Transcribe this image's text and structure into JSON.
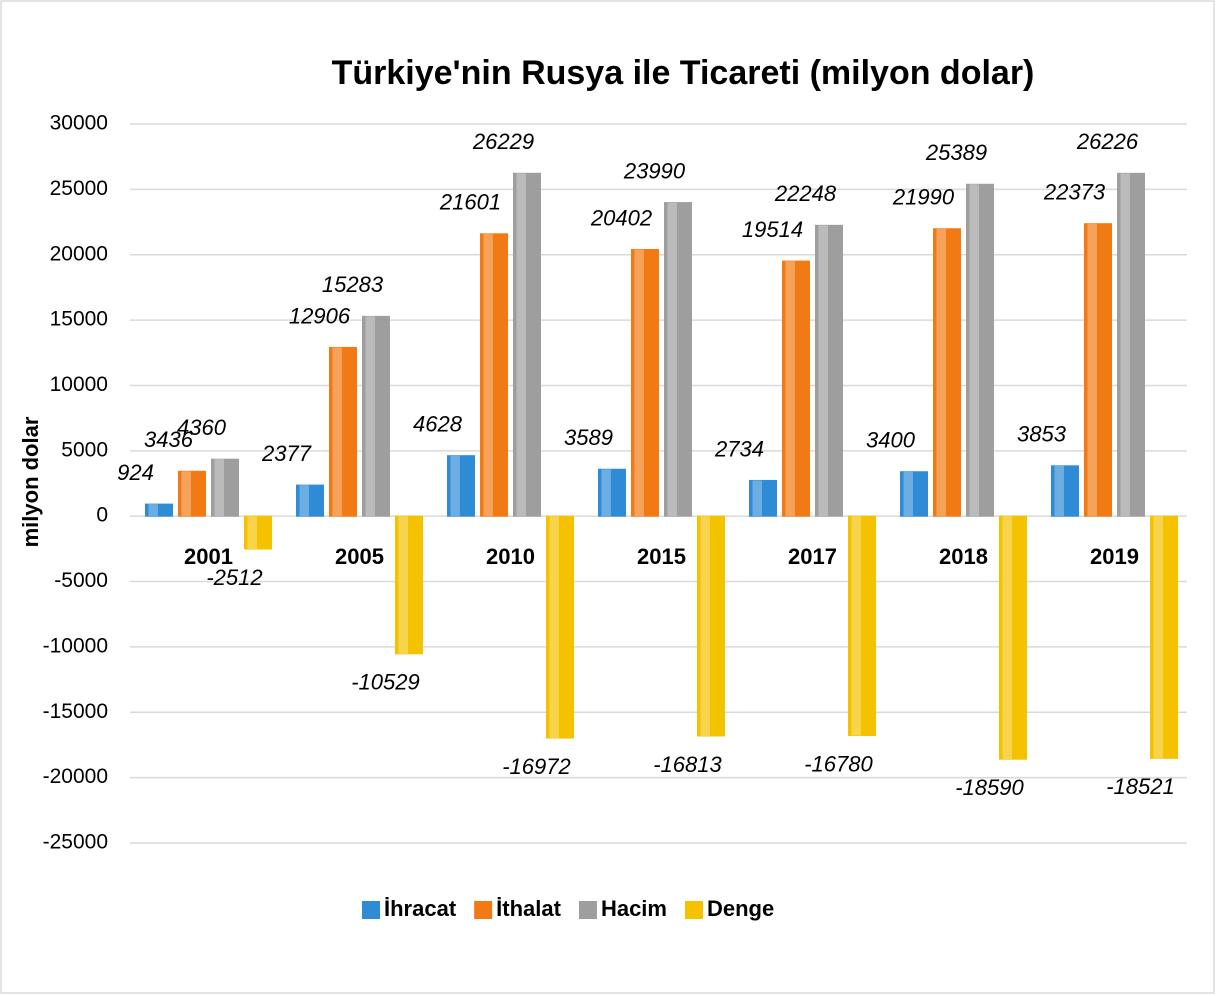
{
  "chart_data": {
    "type": "bar",
    "title": "Türkiye'nin Rusya ile Ticareti (milyon dolar)",
    "y_label": "milyon dolar",
    "categories": [
      "2001",
      "2005",
      "2010",
      "2015",
      "2017",
      "2018",
      "2019"
    ],
    "series": [
      {
        "name": "İhracat",
        "color": "#2f8bd6",
        "values": [
          924,
          2377,
          4628,
          3589,
          2734,
          3400,
          3853
        ]
      },
      {
        "name": "İthalat",
        "color": "#f27a14",
        "values": [
          3436,
          12906,
          21601,
          20402,
          19514,
          21990,
          22373
        ]
      },
      {
        "name": "Hacim",
        "color": "#9e9e9e",
        "values": [
          4360,
          15283,
          26229,
          23990,
          22248,
          25389,
          26226
        ]
      },
      {
        "name": "Denge",
        "color": "#f5c200",
        "values": [
          -2512,
          -10529,
          -16972,
          -16813,
          -16780,
          -18590,
          -18521
        ]
      }
    ],
    "ylim": [
      -25000,
      30000
    ],
    "yticks": [
      -25000,
      -20000,
      -15000,
      -10000,
      -5000,
      0,
      5000,
      10000,
      15000,
      20000,
      25000,
      30000
    ],
    "grid": true,
    "legend": "bottom"
  }
}
